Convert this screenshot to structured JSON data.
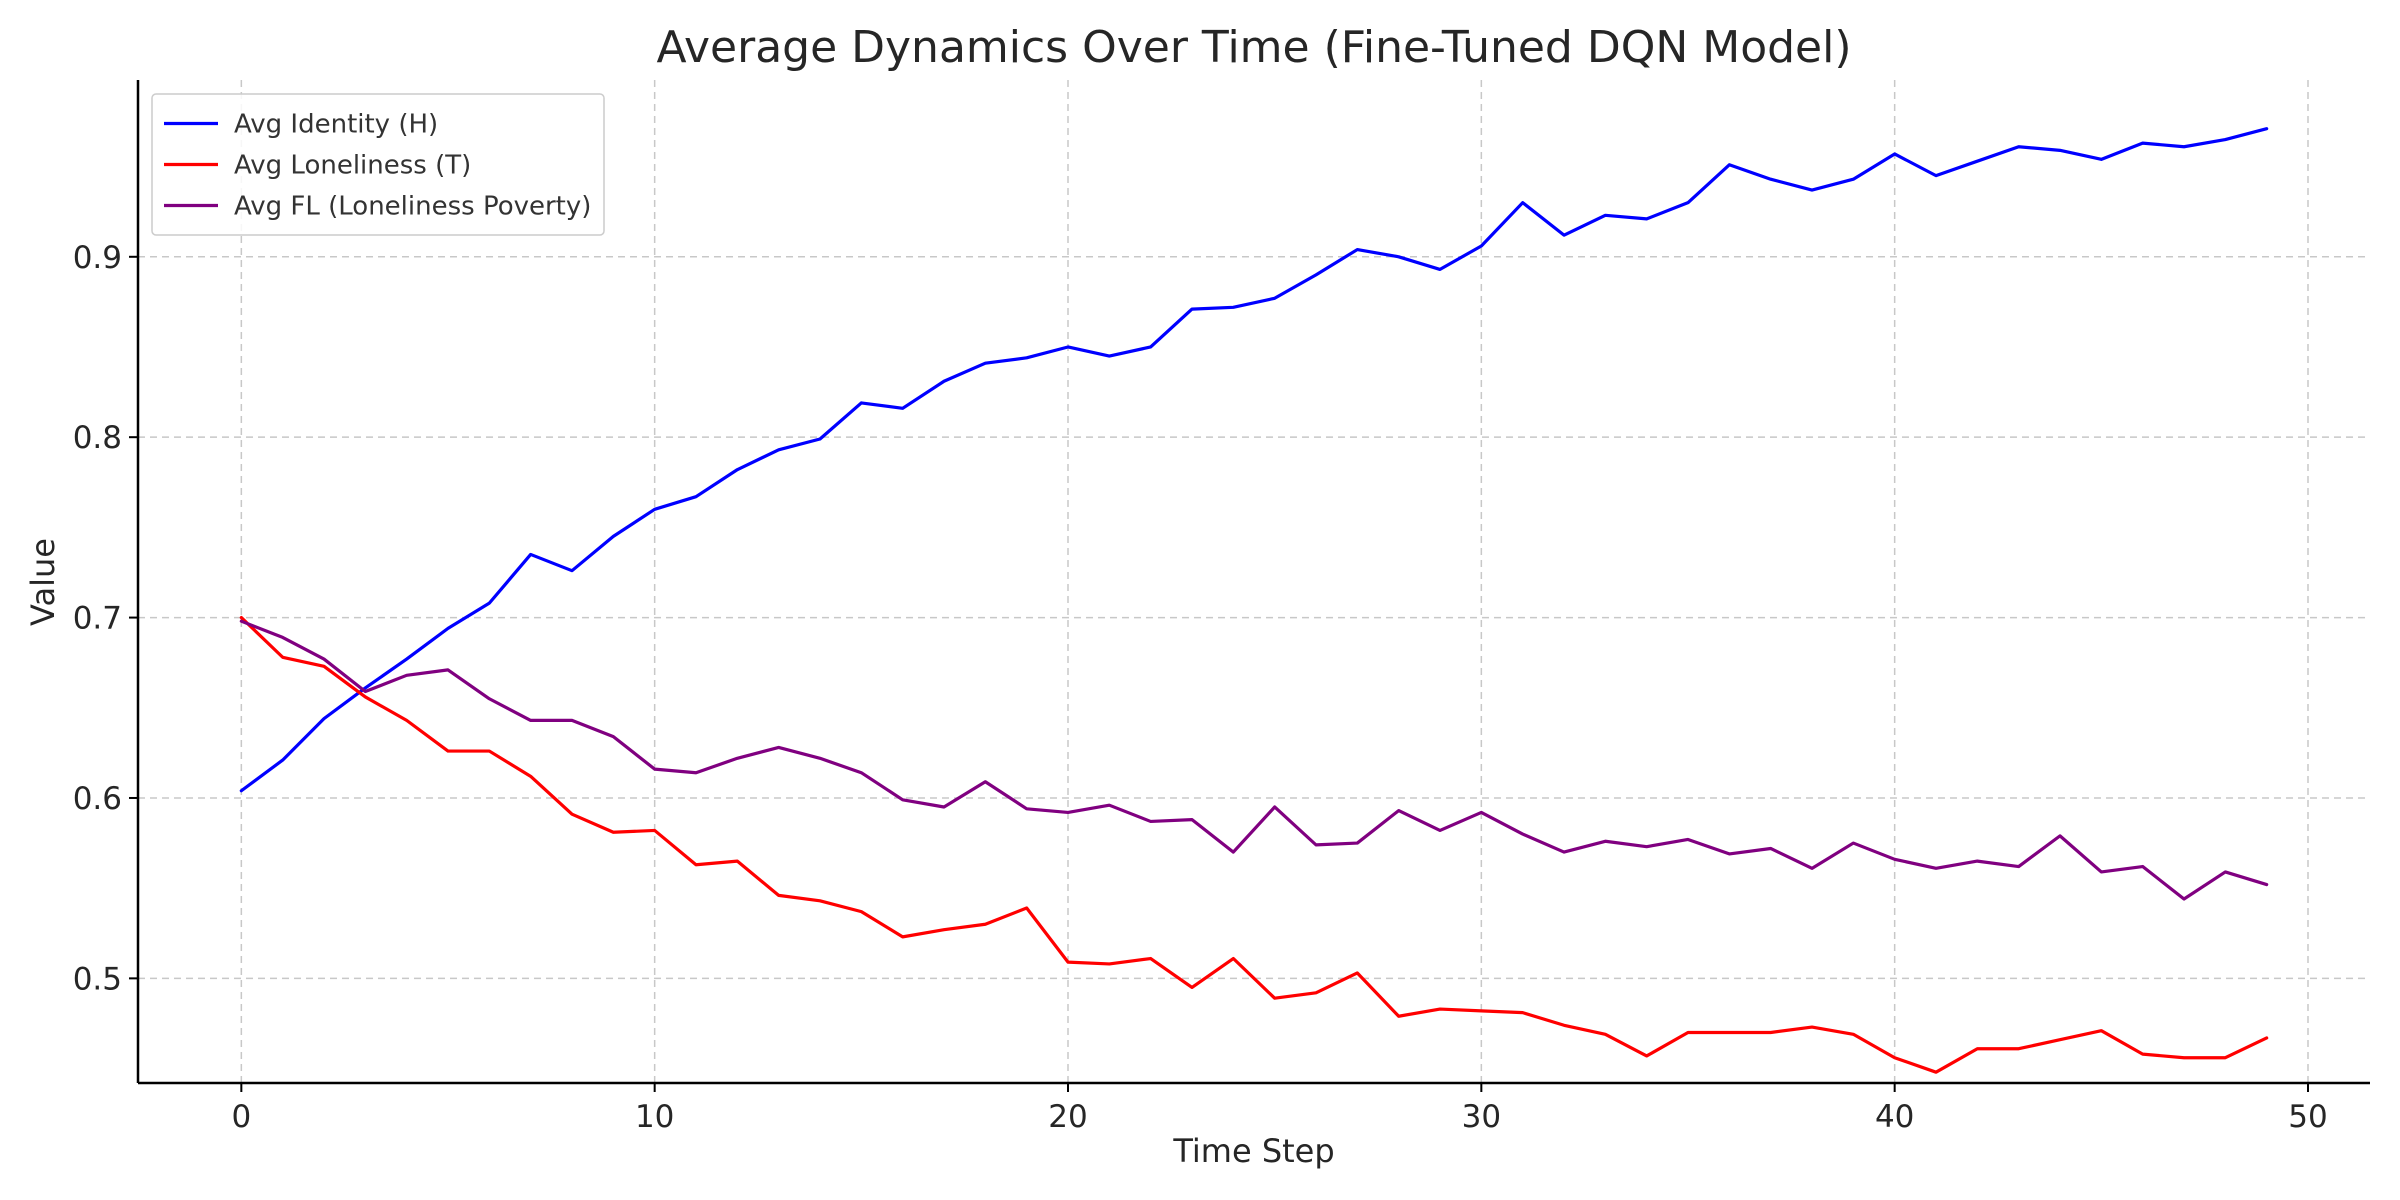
{
  "chart_data": {
    "type": "line",
    "title": "Average Dynamics Over Time (Fine-Tuned DQN Model)",
    "xlabel": "Time Step",
    "ylabel": "Value",
    "xlim": [
      -2.5,
      51.5
    ],
    "ylim": [
      0.442,
      0.998
    ],
    "xticks": [
      0,
      10,
      20,
      30,
      40,
      50
    ],
    "yticks": [
      0.5,
      0.6,
      0.7,
      0.8,
      0.9
    ],
    "grid": true,
    "legend_position": "top-left",
    "x": [
      0,
      1,
      2,
      3,
      4,
      5,
      6,
      7,
      8,
      9,
      10,
      11,
      12,
      13,
      14,
      15,
      16,
      17,
      18,
      19,
      20,
      21,
      22,
      23,
      24,
      25,
      26,
      27,
      28,
      29,
      30,
      31,
      32,
      33,
      34,
      35,
      36,
      37,
      38,
      39,
      40,
      41,
      42,
      43,
      44,
      45,
      46,
      47,
      48,
      49
    ],
    "series": [
      {
        "name": "Avg Identity (H)",
        "color": "#0000ff",
        "values": [
          0.604,
          0.621,
          0.644,
          0.661,
          0.677,
          0.694,
          0.708,
          0.735,
          0.726,
          0.745,
          0.76,
          0.767,
          0.782,
          0.793,
          0.799,
          0.819,
          0.816,
          0.831,
          0.841,
          0.844,
          0.85,
          0.845,
          0.85,
          0.871,
          0.872,
          0.877,
          0.89,
          0.904,
          0.9,
          0.893,
          0.906,
          0.93,
          0.912,
          0.923,
          0.921,
          0.93,
          0.951,
          0.943,
          0.937,
          0.943,
          0.957,
          0.945,
          0.953,
          0.961,
          0.959,
          0.954,
          0.963,
          0.961,
          0.965,
          0.971
        ]
      },
      {
        "name": "Avg Loneliness (T)",
        "color": "#ff0000",
        "values": [
          0.7,
          0.678,
          0.673,
          0.656,
          0.643,
          0.626,
          0.626,
          0.612,
          0.591,
          0.581,
          0.582,
          0.563,
          0.565,
          0.546,
          0.543,
          0.537,
          0.523,
          0.527,
          0.53,
          0.539,
          0.509,
          0.508,
          0.511,
          0.495,
          0.511,
          0.489,
          0.492,
          0.503,
          0.479,
          0.483,
          0.482,
          0.481,
          0.474,
          0.469,
          0.457,
          0.47,
          0.47,
          0.47,
          0.473,
          0.469,
          0.456,
          0.448,
          0.461,
          0.461,
          0.466,
          0.471,
          0.458,
          0.456,
          0.456,
          0.467
        ]
      },
      {
        "name": "Avg FL (Loneliness Poverty)",
        "color": "#800080",
        "values": [
          0.698,
          0.689,
          0.677,
          0.659,
          0.668,
          0.671,
          0.655,
          0.643,
          0.643,
          0.634,
          0.616,
          0.614,
          0.622,
          0.628,
          0.622,
          0.614,
          0.599,
          0.595,
          0.609,
          0.594,
          0.592,
          0.596,
          0.587,
          0.588,
          0.57,
          0.595,
          0.574,
          0.575,
          0.593,
          0.582,
          0.592,
          0.58,
          0.57,
          0.576,
          0.573,
          0.577,
          0.569,
          0.572,
          0.561,
          0.575,
          0.566,
          0.561,
          0.565,
          0.562,
          0.579,
          0.559,
          0.562,
          0.544,
          0.559,
          0.552
        ]
      }
    ]
  }
}
